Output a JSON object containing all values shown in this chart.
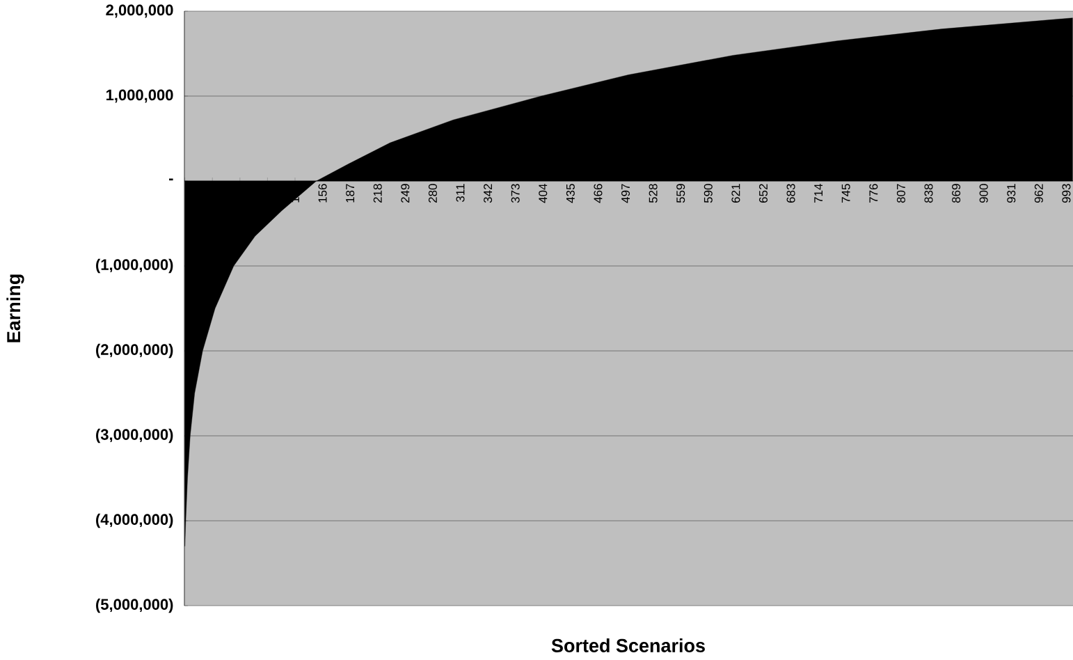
{
  "chart_data": {
    "type": "area",
    "xlabel": "Sorted Scenarios",
    "ylabel": "Earning",
    "color": "#000000",
    "x": [
      1,
      2,
      4,
      7,
      12,
      21,
      35,
      56,
      80,
      110,
      149,
      185,
      232,
      303,
      402,
      500,
      618,
      735,
      853,
      1000
    ],
    "values": [
      -4300000,
      -4000000,
      -3500000,
      -3000000,
      -2500000,
      -2000000,
      -1500000,
      -1000000,
      -650000,
      -350000,
      0,
      200000,
      450000,
      720000,
      1000000,
      1250000,
      1480000,
      1650000,
      1790000,
      1920000
    ],
    "xlim": [
      0.5,
      1000.5
    ],
    "xticks": [
      {
        "value": 1,
        "label": null
      },
      {
        "value": 32,
        "label": null
      },
      {
        "value": 63,
        "label": null
      },
      {
        "value": 94,
        "label": null
      },
      125,
      156,
      187,
      218,
      249,
      280,
      311,
      342,
      373,
      404,
      435,
      466,
      497,
      528,
      559,
      590,
      621,
      652,
      683,
      714,
      745,
      776,
      807,
      838,
      869,
      900,
      931,
      962,
      993
    ],
    "ylim": [
      -5000000,
      2000000
    ],
    "yticks": [
      {
        "value": -5000000,
        "label": "(5,000,000)"
      },
      {
        "value": -4000000,
        "label": "(4,000,000)"
      },
      {
        "value": -3000000,
        "label": "(3,000,000)"
      },
      {
        "value": -2000000,
        "label": "(2,000,000)"
      },
      {
        "value": -1000000,
        "label": "(1,000,000)"
      },
      {
        "value": 0,
        "label": "-"
      },
      {
        "value": 1000000,
        "label": "1,000,000"
      },
      {
        "value": 2000000,
        "label": "2,000,000"
      }
    ],
    "grid": "y"
  }
}
